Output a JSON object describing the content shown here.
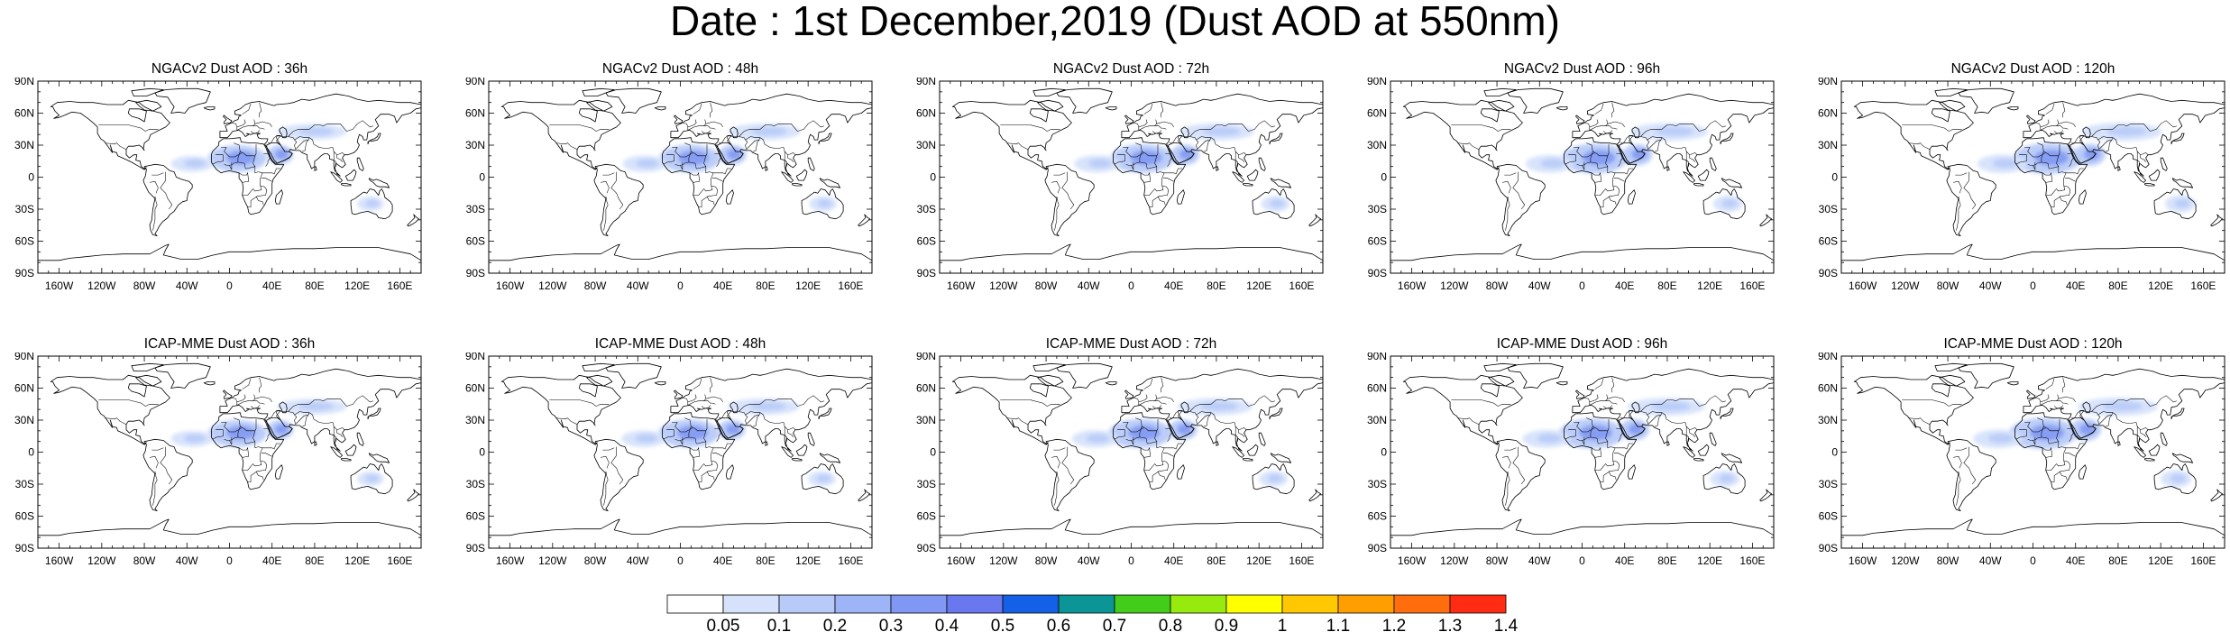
{
  "title": "Date : 1st December,2019 (Dust AOD at 550nm)",
  "rows": [
    {
      "model": "NGACv2",
      "panels": [
        {
          "title": "NGACv2 Dust AOD : 36h",
          "lead_hours": 36
        },
        {
          "title": "NGACv2 Dust AOD : 48h",
          "lead_hours": 48
        },
        {
          "title": "NGACv2 Dust AOD : 72h",
          "lead_hours": 72
        },
        {
          "title": "NGACv2 Dust AOD : 96h",
          "lead_hours": 96
        },
        {
          "title": "NGACv2 Dust AOD : 120h",
          "lead_hours": 120
        }
      ]
    },
    {
      "model": "ICAP-MME",
      "panels": [
        {
          "title": "ICAP-MME Dust AOD : 36h",
          "lead_hours": 36
        },
        {
          "title": "ICAP-MME Dust AOD : 48h",
          "lead_hours": 48
        },
        {
          "title": "ICAP-MME Dust AOD : 72h",
          "lead_hours": 72
        },
        {
          "title": "ICAP-MME Dust AOD : 96h",
          "lead_hours": 96
        },
        {
          "title": "ICAP-MME Dust AOD : 120h",
          "lead_hours": 120
        }
      ]
    }
  ],
  "map": {
    "projection": "cylindrical-equidistant",
    "lon_range": [
      -180,
      180
    ],
    "lat_range": [
      -90,
      90
    ],
    "lat_ticks": [
      "90N",
      "60N",
      "30N",
      "0",
      "30S",
      "60S",
      "90S"
    ],
    "lon_ticks": [
      "160W",
      "120W",
      "80W",
      "40W",
      "0",
      "40E",
      "80E",
      "120E",
      "160E"
    ],
    "coastline_color": "#000000",
    "background": "#ffffff"
  },
  "colorbar": {
    "orientation": "horizontal",
    "position": "bottom",
    "labels": [
      "0.05",
      "0.1",
      "0.2",
      "0.3",
      "0.4",
      "0.5",
      "0.6",
      "0.7",
      "0.8",
      "0.9",
      "1",
      "1.1",
      "1.2",
      "1.3",
      "1.4"
    ],
    "colors": [
      "#ffffff",
      "#d6e2fb",
      "#b8cbf8",
      "#9db4f6",
      "#8098f3",
      "#6a78ef",
      "#1460e6",
      "#0b9596",
      "#44cc1a",
      "#96ea0e",
      "#ffff00",
      "#ffc800",
      "#ff9e00",
      "#ff6d0d",
      "#ff2b12"
    ]
  },
  "chart_data": {
    "type": "heatmap",
    "title": "Date : 1st December,2019 (Dust AOD at 550nm)",
    "variable": "Dust AOD at 550nm",
    "levels": [
      0.05,
      0.1,
      0.2,
      0.3,
      0.4,
      0.5,
      0.6,
      0.7,
      0.8,
      0.9,
      1,
      1.1,
      1.2,
      1.3,
      1.4
    ],
    "dust_regions": [
      {
        "name": "Sahara / Sahel",
        "lon_range": [
          -20,
          35
        ],
        "lat_range": [
          5,
          30
        ],
        "aod": 0.3
      },
      {
        "name": "Tropical Atlantic plume",
        "lon_range": [
          -55,
          -15
        ],
        "lat_range": [
          5,
          20
        ],
        "aod": 0.15
      },
      {
        "name": "Arabian Peninsula",
        "lon_range": [
          35,
          60
        ],
        "lat_range": [
          12,
          30
        ],
        "aod": 0.3
      },
      {
        "name": "Central Asia",
        "lon_range": [
          45,
          110
        ],
        "lat_range": [
          35,
          50
        ],
        "aod": 0.15
      },
      {
        "name": "Australia",
        "lon_range": [
          120,
          145
        ],
        "lat_range": [
          -32,
          -18
        ],
        "aod": 0.15
      }
    ]
  }
}
